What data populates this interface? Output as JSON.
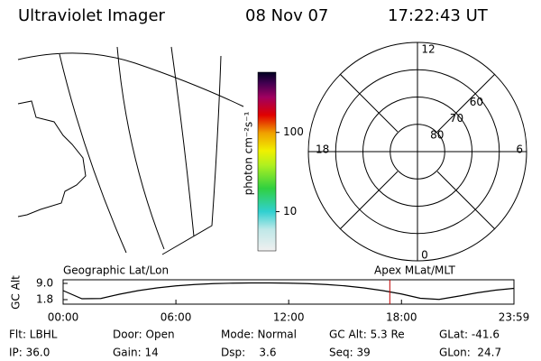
{
  "header": {
    "title": "Ultraviolet Imager",
    "date": "08 Nov 07",
    "time": "17:22:43 UT"
  },
  "colorbar": {
    "label": "photon cm⁻²s⁻¹",
    "ticks": [
      10,
      100
    ],
    "lim": [
      3.2,
      575
    ],
    "log": true
  },
  "polar": {
    "mlt_labels": [
      "12",
      "6",
      "0",
      "18"
    ],
    "lat_rings": [
      80,
      70,
      60
    ]
  },
  "chart_data": {
    "type": "line",
    "y_label": "GC Alt",
    "left_title": "Geographic Lat/Lon",
    "right_title": "Apex MLat/MLT",
    "x": [
      0,
      1,
      2,
      3,
      4,
      5,
      6,
      7,
      8,
      9,
      10,
      11,
      12,
      13,
      14,
      15,
      16,
      17,
      18,
      19,
      20,
      21,
      22,
      23,
      23.983
    ],
    "values": [
      5.8,
      2.2,
      2.3,
      4.2,
      5.8,
      7.0,
      7.9,
      8.5,
      8.9,
      9.1,
      9.2,
      9.2,
      9.1,
      8.9,
      8.5,
      7.9,
      7.0,
      5.8,
      4.3,
      2.4,
      1.9,
      3.3,
      4.8,
      6.0,
      6.8
    ],
    "color": "#000000",
    "xlim": [
      0,
      23.983
    ],
    "xticks": [
      {
        "value": 0,
        "label": "00:00"
      },
      {
        "value": 6,
        "label": "06:00"
      },
      {
        "value": 12,
        "label": "12:00"
      },
      {
        "value": 18,
        "label": "18:00"
      },
      {
        "value": 23.983,
        "label": "23:59"
      }
    ],
    "ylim": [
      1.8,
      9.0
    ],
    "yticks": [
      {
        "value": 9.0,
        "label": "9.0"
      },
      {
        "value": 1.8,
        "label": "1.8"
      }
    ],
    "marker_x": 17.379,
    "marker_color": "#c00000"
  },
  "footer": {
    "rows": [
      [
        "Flt: LBHL",
        "Door: Open",
        "Mode: Normal",
        "GC Alt: 5.3 Re",
        "GLat: -41.6"
      ],
      [
        "IP: 36.0",
        "Gain: 14",
        "Dsp:    3.6",
        "Seq: 39",
        "GLon:  24.7"
      ]
    ]
  }
}
